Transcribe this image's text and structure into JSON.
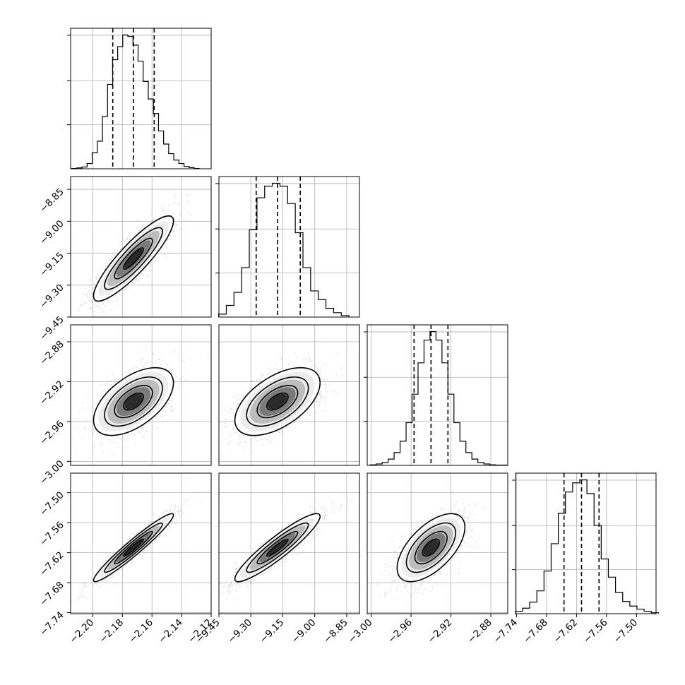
{
  "chart_data": {
    "type": "corner",
    "grid": true,
    "n_params": 4,
    "axes": [
      {
        "range": [
          -2.215,
          -2.12
        ],
        "ticks": [
          -2.2,
          -2.18,
          -2.16,
          -2.14,
          -2.12
        ],
        "tick_labels": [
          "−2.20",
          "−2.18",
          "−2.16",
          "−2.14",
          "−2.12"
        ],
        "center": -2.1725,
        "sigma": 0.0135
      },
      {
        "range": [
          -9.45,
          -8.79
        ],
        "ticks": [
          -9.45,
          -9.3,
          -9.15,
          -9.0,
          -8.85
        ],
        "tick_labels": [
          "−9.45",
          "−9.30",
          "−9.15",
          "−9.00",
          "−8.85"
        ],
        "center": -9.175,
        "sigma": 0.1
      },
      {
        "range": [
          -3.004,
          -2.863
        ],
        "ticks": [
          -3.0,
          -2.96,
          -2.92,
          -2.88
        ],
        "tick_labels": [
          "−3.00",
          "−2.96",
          "−2.92",
          "−2.88"
        ],
        "center": -2.94,
        "sigma": 0.017
      },
      {
        "range": [
          -7.742,
          -7.461
        ],
        "ticks": [
          -7.74,
          -7.68,
          -7.62,
          -7.56,
          -7.5
        ],
        "tick_labels": [
          "−7.74",
          "−7.68",
          "−7.62",
          "−7.56",
          "−7.50"
        ],
        "center": -7.61,
        "sigma": 0.034
      }
    ],
    "diagonal_histograms": [
      {
        "bin_centers": [
          -2.2125,
          -2.209,
          -2.2056,
          -2.2021,
          -2.1987,
          -2.1952,
          -2.1918,
          -2.1883,
          -2.1849,
          -2.1815,
          -2.178,
          -2.1746,
          -2.1711,
          -2.1677,
          -2.1642,
          -2.1608,
          -2.1573,
          -2.1539,
          -2.1504,
          -2.147,
          -2.1435,
          -2.1401,
          -2.1366,
          -2.1332,
          -2.1298
        ],
        "counts": [
          1,
          3,
          6,
          18,
          55,
          95,
          180,
          290,
          375,
          420,
          460,
          455,
          425,
          370,
          300,
          240,
          190,
          130,
          85,
          52,
          30,
          18,
          8,
          4,
          1
        ],
        "quantiles": [
          -2.1865,
          -2.1725,
          -2.1585
        ]
      },
      {
        "bin_centers": [
          -9.4333,
          -9.3973,
          -9.3613,
          -9.3253,
          -9.2893,
          -9.2533,
          -9.2173,
          -9.1813,
          -9.1453,
          -9.1093,
          -9.0733,
          -9.0373,
          -9.0013,
          -8.9653,
          -8.9293,
          -8.8933,
          -8.8573
        ],
        "counts": [
          10,
          40,
          85,
          170,
          300,
          410,
          450,
          460,
          450,
          390,
          290,
          170,
          90,
          60,
          30,
          15,
          5
        ],
        "quantiles": [
          -9.275,
          -9.175,
          -9.068
        ]
      },
      {
        "bin_centers": [
          -2.998,
          -2.992,
          -2.986,
          -2.98,
          -2.974,
          -2.968,
          -2.962,
          -2.956,
          -2.95,
          -2.944,
          -2.938,
          -2.932,
          -2.926,
          -2.92,
          -2.914,
          -2.908,
          -2.902,
          -2.896,
          -2.89,
          -2.884,
          -2.878,
          -2.872,
          -2.866
        ],
        "counts": [
          2,
          5,
          10,
          22,
          45,
          85,
          150,
          250,
          360,
          440,
          470,
          440,
          360,
          250,
          150,
          85,
          45,
          22,
          10,
          5,
          2,
          1,
          1
        ],
        "quantiles": [
          -2.957,
          -2.94,
          -2.923
        ]
      },
      {
        "bin_centers": [
          -7.7351,
          -7.7208,
          -7.7065,
          -7.6922,
          -7.6779,
          -7.6636,
          -7.6493,
          -7.635,
          -7.6207,
          -7.6064,
          -7.5921,
          -7.5778,
          -7.5635,
          -7.5492,
          -7.5349,
          -7.5206,
          -7.5063,
          -7.492,
          -7.4777,
          -7.4634
        ],
        "counts": [
          8,
          18,
          38,
          75,
          140,
          230,
          330,
          400,
          430,
          440,
          395,
          290,
          180,
          120,
          70,
          40,
          25,
          15,
          8,
          3
        ],
        "quantiles": [
          -7.645,
          -7.61,
          -7.575
        ]
      }
    ],
    "quantile_levels": [
      0.16,
      0.5,
      0.84
    ]
  }
}
